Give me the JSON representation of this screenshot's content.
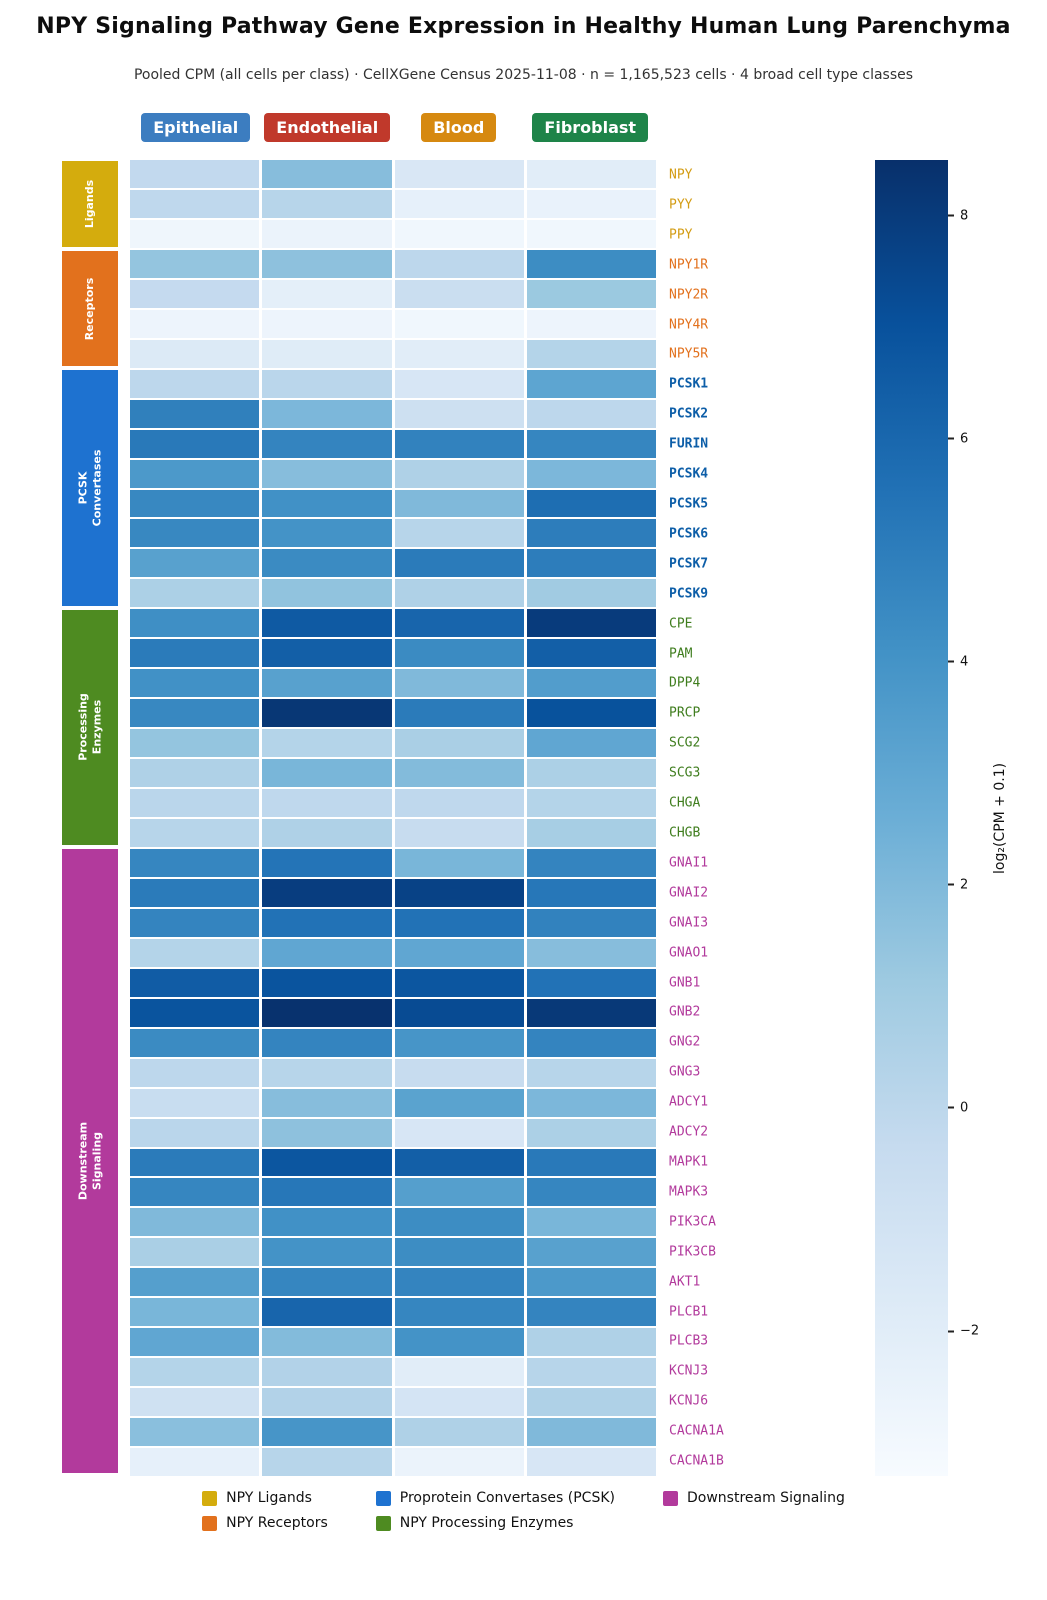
{
  "title": "NPY Signaling Pathway Gene Expression in Healthy Human Lung Parenchyma",
  "subtitle": "Pooled CPM (all cells per class) · CellXGene Census 2025-11-08 · n = 1,165,523 cells · 4 broad cell type classes",
  "columns": [
    {
      "label": "Epithelial",
      "color": "#3c7dc0"
    },
    {
      "label": "Endothelial",
      "color": "#c0392b"
    },
    {
      "label": "Blood",
      "color": "#d68910"
    },
    {
      "label": "Fibroblast",
      "color": "#1e8449"
    }
  ],
  "chart_data": {
    "type": "heatmap",
    "columns": [
      "Epithelial",
      "Endothelial",
      "Blood",
      "Fibroblast"
    ],
    "groups": [
      {
        "name": "Ligands",
        "sidebar_label": "Ligands",
        "color": "#d4ac0d",
        "label_color": "#d39c13",
        "bold_genes": false,
        "rows": [
          {
            "gene": "NPY",
            "values": [
              -0.2,
              1.8,
              -1.5,
              -2.0
            ]
          },
          {
            "gene": "PYY",
            "values": [
              -0.1,
              0.2,
              -2.3,
              -2.5
            ]
          },
          {
            "gene": "PPY",
            "values": [
              -2.8,
              -2.6,
              -2.9,
              -2.9
            ]
          }
        ]
      },
      {
        "name": "Receptors",
        "sidebar_label": "Receptors",
        "color": "#e2711d",
        "label_color": "#e2711d",
        "bold_genes": false,
        "rows": [
          {
            "gene": "NPY1R",
            "values": [
              1.4,
              1.6,
              0.0,
              4.3
            ]
          },
          {
            "gene": "NPY2R",
            "values": [
              -0.3,
              -2.2,
              -0.6,
              1.2
            ]
          },
          {
            "gene": "NPY4R",
            "values": [
              -2.7,
              -2.7,
              -2.9,
              -2.7
            ]
          },
          {
            "gene": "NPY5R",
            "values": [
              -1.7,
              -1.9,
              -2.0,
              0.3
            ]
          }
        ]
      },
      {
        "name": "PCSK Convertases",
        "sidebar_label": "PCSK\nConvertases",
        "color": "#1e72d0",
        "label_color": "#0d5ea8",
        "bold_genes": true,
        "rows": [
          {
            "gene": "PCSK1",
            "values": [
              0.0,
              0.1,
              -1.4,
              3.1
            ]
          },
          {
            "gene": "PCSK2",
            "values": [
              4.9,
              2.1,
              -0.8,
              0.0
            ]
          },
          {
            "gene": "FURIN",
            "values": [
              5.2,
              4.7,
              4.8,
              4.6
            ]
          },
          {
            "gene": "PCSK4",
            "values": [
              3.7,
              1.8,
              0.5,
              2.1
            ]
          },
          {
            "gene": "PCSK5",
            "values": [
              4.5,
              4.1,
              2.0,
              5.7
            ]
          },
          {
            "gene": "PCSK6",
            "values": [
              4.5,
              4.0,
              0.2,
              5.0
            ]
          },
          {
            "gene": "PCSK7",
            "values": [
              3.3,
              4.4,
              5.1,
              5.0
            ]
          },
          {
            "gene": "PCSK9",
            "values": [
              0.6,
              1.5,
              0.5,
              1.0
            ]
          }
        ]
      },
      {
        "name": "Processing Enzymes",
        "sidebar_label": "Processing\nEnzymes",
        "color": "#4e8b21",
        "label_color": "#3f7d1e",
        "bold_genes": false,
        "rows": [
          {
            "gene": "CPE",
            "values": [
              4.2,
              6.6,
              6.1,
              8.0
            ]
          },
          {
            "gene": "PAM",
            "values": [
              5.1,
              6.4,
              4.4,
              6.4
            ]
          },
          {
            "gene": "DPP4",
            "values": [
              4.1,
              3.3,
              2.0,
              3.5
            ]
          },
          {
            "gene": "PRCP",
            "values": [
              4.5,
              8.2,
              5.1,
              7.0
            ]
          },
          {
            "gene": "SCG2",
            "values": [
              1.4,
              0.3,
              0.7,
              3.0
            ]
          },
          {
            "gene": "SCG3",
            "values": [
              0.5,
              2.2,
              1.9,
              0.6
            ]
          },
          {
            "gene": "CHGA",
            "values": [
              0.1,
              -0.1,
              -0.1,
              0.3
            ]
          },
          {
            "gene": "CHGB",
            "values": [
              0.2,
              0.5,
              -0.4,
              0.8
            ]
          }
        ]
      },
      {
        "name": "Downstream Signaling",
        "sidebar_label": "Downstream\nSignaling",
        "color": "#b23a9c",
        "label_color": "#b23a9c",
        "bold_genes": false,
        "rows": [
          {
            "gene": "GNAI1",
            "values": [
              4.6,
              5.4,
              2.2,
              4.7
            ]
          },
          {
            "gene": "GNAI2",
            "values": [
              5.1,
              7.9,
              7.7,
              5.3
            ]
          },
          {
            "gene": "GNAI3",
            "values": [
              4.7,
              5.5,
              5.5,
              4.8
            ]
          },
          {
            "gene": "GNAO1",
            "values": [
              0.3,
              3.0,
              3.0,
              1.8
            ]
          },
          {
            "gene": "GNB1",
            "values": [
              6.5,
              6.9,
              6.8,
              5.5
            ]
          },
          {
            "gene": "GNB2",
            "values": [
              6.9,
              8.4,
              7.3,
              8.1
            ]
          },
          {
            "gene": "GNG2",
            "values": [
              4.4,
              4.7,
              3.9,
              4.7
            ]
          },
          {
            "gene": "GNG3",
            "values": [
              0.0,
              0.2,
              -0.4,
              0.2
            ]
          },
          {
            "gene": "ADCY1",
            "values": [
              -0.5,
              1.8,
              3.2,
              2.1
            ]
          },
          {
            "gene": "ADCY2",
            "values": [
              0.1,
              1.6,
              -1.4,
              0.6
            ]
          },
          {
            "gene": "MAPK1",
            "values": [
              5.1,
              6.8,
              6.4,
              5.2
            ]
          },
          {
            "gene": "MAPK3",
            "values": [
              4.6,
              5.3,
              3.4,
              4.6
            ]
          },
          {
            "gene": "PIK3CA",
            "values": [
              2.0,
              4.1,
              4.3,
              2.2
            ]
          },
          {
            "gene": "PIK3CB",
            "values": [
              0.7,
              4.0,
              4.3,
              3.3
            ]
          },
          {
            "gene": "AKT1",
            "values": [
              3.4,
              4.6,
              4.7,
              3.7
            ]
          },
          {
            "gene": "PLCB1",
            "values": [
              2.2,
              6.1,
              4.6,
              4.7
            ]
          },
          {
            "gene": "PLCB3",
            "values": [
              3.0,
              1.9,
              4.0,
              0.5
            ]
          },
          {
            "gene": "KCNJ3",
            "values": [
              0.3,
              0.4,
              -2.0,
              0.2
            ]
          },
          {
            "gene": "KCNJ6",
            "values": [
              -0.9,
              0.4,
              -1.2,
              0.5
            ]
          },
          {
            "gene": "CACNA1A",
            "values": [
              1.7,
              3.9,
              0.5,
              2.0
            ]
          },
          {
            "gene": "CACNA1B",
            "values": [
              -2.3,
              0.2,
              -2.6,
              -1.4
            ]
          }
        ]
      }
    ],
    "colorbar": {
      "label": "log₂(CPM + 0.1)",
      "ticks": [
        8,
        6,
        4,
        2,
        0,
        -2
      ],
      "vmin": -3.3,
      "vmax": 8.5,
      "colormap": "Blues"
    }
  },
  "legend": {
    "items": [
      {
        "label": "NPY Ligands",
        "color": "#d4ac0d"
      },
      {
        "label": "Proprotein Convertases (PCSK)",
        "color": "#1e72d0"
      },
      {
        "label": "Downstream Signaling",
        "color": "#b23a9c"
      },
      {
        "label": "NPY Receptors",
        "color": "#e2711d"
      },
      {
        "label": "NPY Processing Enzymes",
        "color": "#4e8b21"
      }
    ]
  }
}
